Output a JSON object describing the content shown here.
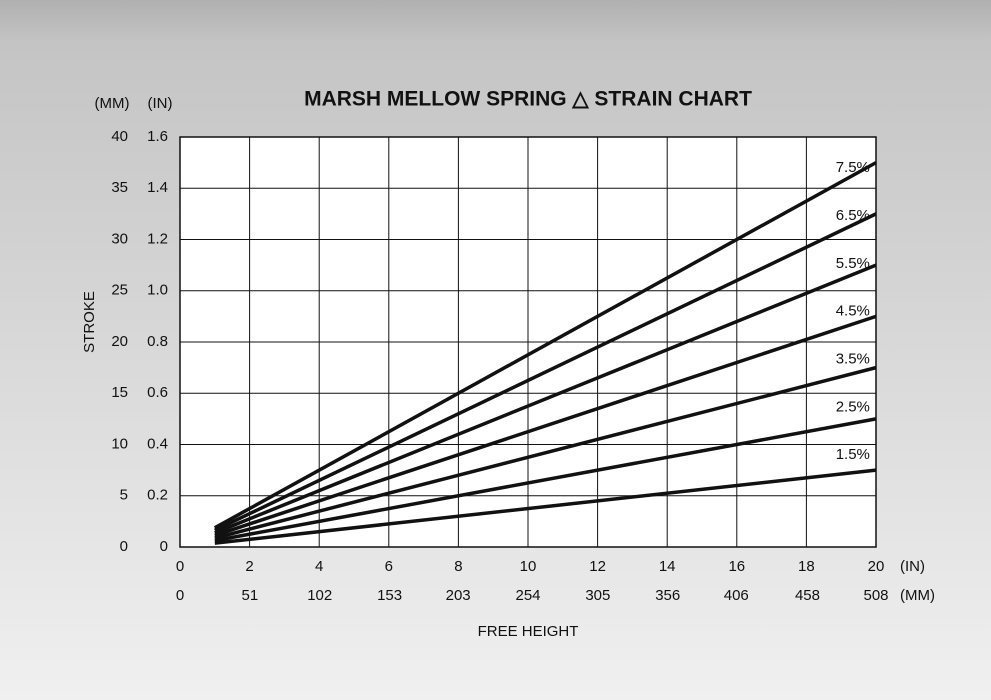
{
  "chart_data": {
    "type": "line",
    "title": "MARSH MELLOW SPRING △ STRAIN CHART",
    "ylabel": "STROKE",
    "xlabel": "FREE HEIGHT",
    "y_unit": "(IN)",
    "y2_unit": "(MM)",
    "x_unit": "(IN)",
    "x2_unit": "(MM)",
    "x": [
      1,
      20
    ],
    "series": [
      {
        "name": "7.5%",
        "color": "#111111",
        "values": [
          0.075,
          1.5
        ]
      },
      {
        "name": "6.5%",
        "color": "#111111",
        "values": [
          0.065,
          1.3
        ]
      },
      {
        "name": "5.5%",
        "color": "#111111",
        "values": [
          0.055,
          1.1
        ]
      },
      {
        "name": "4.5%",
        "color": "#111111",
        "values": [
          0.045,
          0.9
        ]
      },
      {
        "name": "3.5%",
        "color": "#111111",
        "values": [
          0.035,
          0.7
        ]
      },
      {
        "name": "2.5%",
        "color": "#111111",
        "values": [
          0.025,
          0.5
        ]
      },
      {
        "name": "1.5%",
        "color": "#111111",
        "values": [
          0.015,
          0.3
        ]
      }
    ],
    "xlim": [
      0,
      20
    ],
    "xticks": [
      0,
      2,
      4,
      6,
      8,
      10,
      12,
      14,
      16,
      18,
      20
    ],
    "x2lim": [
      0,
      508
    ],
    "x2ticks": [
      0,
      51,
      102,
      153,
      203,
      254,
      305,
      356,
      406,
      458,
      508
    ],
    "ylim": [
      0,
      1.6
    ],
    "yticks": [
      0,
      0.2,
      0.4,
      0.6,
      0.8,
      {
        "value": 1,
        "label": "1.0"
      },
      1.2,
      1.4,
      1.6
    ],
    "y2lim": [
      0,
      40
    ],
    "y2ticks": [
      0,
      5,
      10,
      15,
      20,
      25,
      30,
      35,
      40
    ],
    "grid": true
  }
}
